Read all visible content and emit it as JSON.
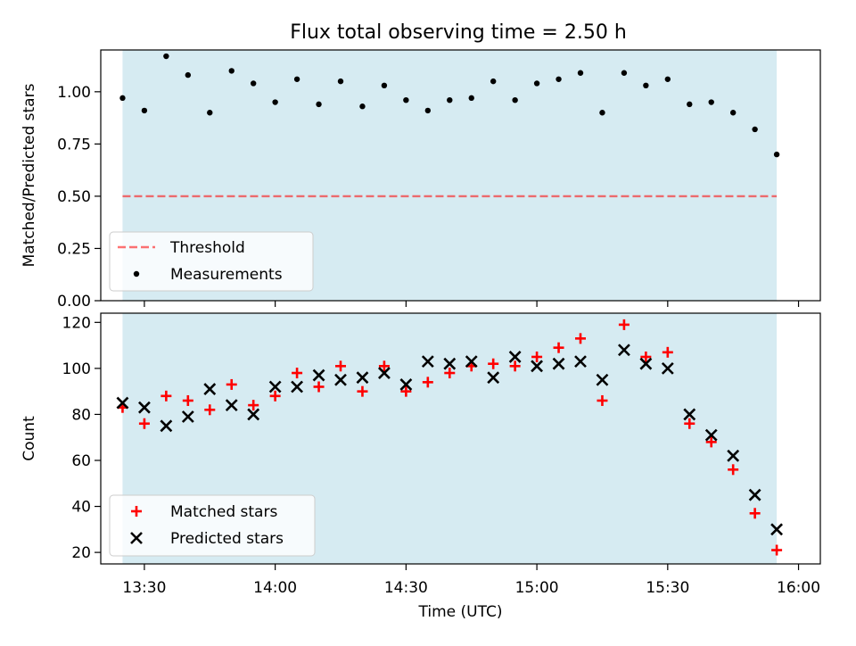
{
  "title": "Flux total observing time = 2.50 h",
  "colors": {
    "span": "#add8e6",
    "threshold": "#ff0000",
    "measurements": "#000000",
    "matched": "#ff0000",
    "predicted": "#000000"
  },
  "chart_data": [
    {
      "type": "scatter",
      "ylabel": "Matched/Predicted stars",
      "ylim": [
        0,
        1.2
      ],
      "xlim": [
        "13:20",
        "16:05"
      ],
      "yticks": [
        0.0,
        0.25,
        0.5,
        0.75,
        1.0
      ],
      "ytick_labels": [
        "0.00",
        "0.25",
        "0.50",
        "0.75",
        "1.00"
      ],
      "shaded_span": [
        "13:25",
        "15:55"
      ],
      "threshold": 0.5,
      "legend": {
        "position": "lower-left",
        "entries": [
          "Threshold",
          "Measurements"
        ]
      },
      "series": [
        {
          "name": "Measurements",
          "marker": "dot",
          "x": [
            "13:25",
            "13:30",
            "13:35",
            "13:40",
            "13:45",
            "13:50",
            "13:55",
            "14:00",
            "14:05",
            "14:10",
            "14:15",
            "14:20",
            "14:25",
            "14:30",
            "14:35",
            "14:40",
            "14:45",
            "14:50",
            "14:55",
            "15:00",
            "15:05",
            "15:10",
            "15:15",
            "15:20",
            "15:25",
            "15:30",
            "15:35",
            "15:40",
            "15:45",
            "15:50",
            "15:55"
          ],
          "values": [
            0.97,
            0.91,
            1.17,
            1.08,
            0.9,
            1.1,
            1.04,
            0.95,
            1.06,
            0.94,
            1.05,
            0.93,
            1.03,
            0.96,
            0.91,
            0.96,
            0.97,
            1.05,
            0.96,
            1.04,
            1.06,
            1.09,
            0.9,
            1.09,
            1.03,
            1.06,
            0.94,
            0.95,
            0.9,
            0.82,
            0.7
          ]
        }
      ]
    },
    {
      "type": "scatter",
      "xlabel": "Time (UTC)",
      "ylabel": "Count",
      "ylim": [
        15,
        124
      ],
      "xlim": [
        "13:20",
        "16:05"
      ],
      "xticks": [
        "13:30",
        "14:00",
        "14:30",
        "15:00",
        "15:30",
        "16:00"
      ],
      "yticks": [
        20,
        40,
        60,
        80,
        100,
        120
      ],
      "ytick_labels": [
        "20",
        "40",
        "60",
        "80",
        "100",
        "120"
      ],
      "shaded_span": [
        "13:25",
        "15:55"
      ],
      "legend": {
        "position": "lower-left",
        "entries": [
          "Matched stars",
          "Predicted stars"
        ]
      },
      "x": [
        "13:25",
        "13:30",
        "13:35",
        "13:40",
        "13:45",
        "13:50",
        "13:55",
        "14:00",
        "14:05",
        "14:10",
        "14:15",
        "14:20",
        "14:25",
        "14:30",
        "14:35",
        "14:40",
        "14:45",
        "14:50",
        "14:55",
        "15:00",
        "15:05",
        "15:10",
        "15:15",
        "15:20",
        "15:25",
        "15:30",
        "15:35",
        "15:40",
        "15:45",
        "15:50",
        "15:55"
      ],
      "series": [
        {
          "name": "Matched stars",
          "marker": "plus",
          "values": [
            83,
            76,
            88,
            86,
            82,
            93,
            84,
            88,
            98,
            92,
            101,
            90,
            101,
            90,
            94,
            98,
            101,
            102,
            101,
            105,
            109,
            113,
            86,
            119,
            105,
            107,
            76,
            68,
            56,
            37,
            21
          ]
        },
        {
          "name": "Predicted stars",
          "marker": "x",
          "values": [
            85,
            83,
            75,
            79,
            91,
            84,
            80,
            92,
            92,
            97,
            95,
            96,
            98,
            93,
            103,
            102,
            103,
            96,
            105,
            101,
            102,
            103,
            95,
            108,
            102,
            100,
            80,
            71,
            62,
            45,
            30
          ]
        }
      ]
    }
  ]
}
